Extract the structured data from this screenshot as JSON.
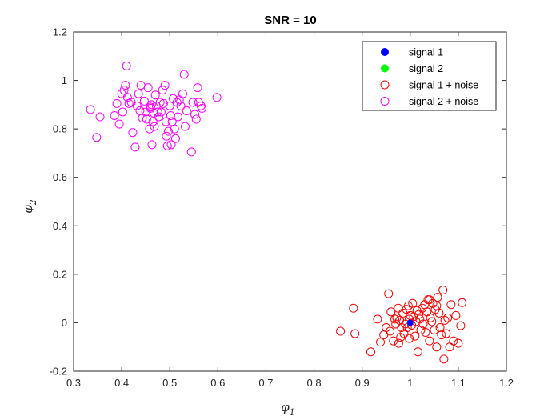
{
  "chart_data": {
    "type": "scatter",
    "title": "SNR = 10",
    "xlabel": {
      "base": "φ",
      "sub": "1"
    },
    "ylabel": {
      "base": "φ",
      "sub": "2"
    },
    "xlim": [
      0.3,
      1.2
    ],
    "ylim": [
      -0.2,
      1.2
    ],
    "xticks": [
      "0.3",
      "0.4",
      "0.5",
      "0.6",
      "0.7",
      "0.8",
      "0.9",
      "1",
      "1.1",
      "1.2"
    ],
    "yticks": [
      "-0.2",
      "0",
      "0.2",
      "0.4",
      "0.6",
      "0.8",
      "1",
      "1.2"
    ],
    "grid": false,
    "legend_position": "top-right",
    "series": [
      {
        "name": "signal 1",
        "marker": "filled-circle",
        "color": "#0000ff",
        "points": [
          [
            1.0,
            0.0
          ]
        ]
      },
      {
        "name": "signal 2",
        "marker": "filled-circle",
        "color": "#00ff00",
        "points": []
      },
      {
        "name": "signal 1 + noise",
        "marker": "open-circle",
        "color": "#ff0000",
        "points": [
          [
            0.855,
            -0.035
          ],
          [
            0.882,
            0.06
          ],
          [
            0.885,
            -0.045
          ],
          [
            0.918,
            -0.12
          ],
          [
            0.932,
            0.015
          ],
          [
            0.938,
            -0.08
          ],
          [
            0.945,
            -0.05
          ],
          [
            0.95,
            -0.02
          ],
          [
            0.955,
            0.12
          ],
          [
            0.958,
            -0.035
          ],
          [
            0.96,
            0.045
          ],
          [
            0.965,
            -0.075
          ],
          [
            0.968,
            0.015
          ],
          [
            0.97,
            -0.005
          ],
          [
            0.972,
            0.02
          ],
          [
            0.975,
            0.06
          ],
          [
            0.976,
            -0.085
          ],
          [
            0.978,
            0.01
          ],
          [
            0.98,
            -0.06
          ],
          [
            0.982,
            -0.02
          ],
          [
            0.985,
            0.04
          ],
          [
            0.987,
            -0.045
          ],
          [
            0.99,
            -0.005
          ],
          [
            0.992,
            0.055
          ],
          [
            0.994,
            -0.02
          ],
          [
            0.996,
            0.07
          ],
          [
            0.998,
            -0.065
          ],
          [
            1.0,
            0.03
          ],
          [
            1.003,
            -0.01
          ],
          [
            1.005,
            0.08
          ],
          [
            1.007,
            0.025
          ],
          [
            1.01,
            -0.055
          ],
          [
            1.012,
            0.005
          ],
          [
            1.014,
            0.05
          ],
          [
            1.016,
            -0.12
          ],
          [
            1.018,
            0.035
          ],
          [
            1.02,
            0.015
          ],
          [
            1.022,
            -0.03
          ],
          [
            1.025,
            0.06
          ],
          [
            1.027,
            -0.005
          ],
          [
            1.03,
            0.075
          ],
          [
            1.032,
            -0.04
          ],
          [
            1.035,
            0.045
          ],
          [
            1.037,
            0.095
          ],
          [
            1.04,
            -0.075
          ],
          [
            1.042,
            0.02
          ],
          [
            1.045,
            0.005
          ],
          [
            1.047,
            0.08
          ],
          [
            1.05,
            -0.03
          ],
          [
            1.052,
            0.055
          ],
          [
            1.055,
            -0.1
          ],
          [
            1.057,
            0.105
          ],
          [
            1.06,
            0.04
          ],
          [
            1.062,
            -0.02
          ],
          [
            1.065,
            -0.05
          ],
          [
            1.068,
            0.135
          ],
          [
            1.07,
            -0.15
          ],
          [
            1.072,
            0.01
          ],
          [
            1.075,
            -0.045
          ],
          [
            1.078,
            0.02
          ],
          [
            1.082,
            -0.1
          ],
          [
            1.085,
            0.075
          ],
          [
            1.09,
            -0.075
          ],
          [
            1.095,
            0.03
          ],
          [
            1.1,
            -0.085
          ],
          [
            1.105,
            -0.012
          ],
          [
            1.108,
            0.083
          ],
          [
            1.04,
            0.095
          ],
          [
            1.055,
            0.07
          ],
          [
            0.998,
            0.015
          ]
        ]
      },
      {
        "name": "signal 2 + noise",
        "marker": "open-circle",
        "color": "#ff00ff",
        "points": [
          [
            0.335,
            0.88
          ],
          [
            0.348,
            0.765
          ],
          [
            0.355,
            0.85
          ],
          [
            0.385,
            0.855
          ],
          [
            0.39,
            0.905
          ],
          [
            0.395,
            0.82
          ],
          [
            0.4,
            0.945
          ],
          [
            0.402,
            0.87
          ],
          [
            0.405,
            0.96
          ],
          [
            0.408,
            0.98
          ],
          [
            0.41,
            1.06
          ],
          [
            0.412,
            0.93
          ],
          [
            0.415,
            0.905
          ],
          [
            0.42,
            0.91
          ],
          [
            0.423,
            0.785
          ],
          [
            0.428,
            0.725
          ],
          [
            0.432,
            0.895
          ],
          [
            0.435,
            0.945
          ],
          [
            0.438,
            0.875
          ],
          [
            0.44,
            0.98
          ],
          [
            0.443,
            0.845
          ],
          [
            0.447,
            0.915
          ],
          [
            0.45,
            0.87
          ],
          [
            0.452,
            0.84
          ],
          [
            0.455,
            0.97
          ],
          [
            0.458,
            0.8
          ],
          [
            0.46,
            0.885
          ],
          [
            0.462,
            0.9
          ],
          [
            0.463,
            0.735
          ],
          [
            0.465,
            0.83
          ],
          [
            0.467,
            0.865
          ],
          [
            0.468,
            0.81
          ],
          [
            0.47,
            0.94
          ],
          [
            0.472,
            0.895
          ],
          [
            0.475,
            0.87
          ],
          [
            0.477,
            0.85
          ],
          [
            0.48,
            0.91
          ],
          [
            0.482,
            0.87
          ],
          [
            0.485,
            0.96
          ],
          [
            0.487,
            0.905
          ],
          [
            0.49,
            0.98
          ],
          [
            0.492,
            0.83
          ],
          [
            0.493,
            0.77
          ],
          [
            0.495,
            0.73
          ],
          [
            0.497,
            0.79
          ],
          [
            0.5,
            0.895
          ],
          [
            0.502,
            0.855
          ],
          [
            0.503,
            0.735
          ],
          [
            0.505,
            0.83
          ],
          [
            0.507,
            0.925
          ],
          [
            0.51,
            0.8
          ],
          [
            0.512,
            0.76
          ],
          [
            0.515,
            0.91
          ],
          [
            0.517,
            0.85
          ],
          [
            0.52,
            0.92
          ],
          [
            0.523,
            0.895
          ],
          [
            0.527,
            0.945
          ],
          [
            0.53,
            1.025
          ],
          [
            0.532,
            0.81
          ],
          [
            0.535,
            0.875
          ],
          [
            0.545,
            0.705
          ],
          [
            0.548,
            0.91
          ],
          [
            0.552,
            0.86
          ],
          [
            0.555,
            0.84
          ],
          [
            0.558,
            0.97
          ],
          [
            0.56,
            0.91
          ],
          [
            0.565,
            0.895
          ],
          [
            0.567,
            0.885
          ],
          [
            0.598,
            0.93
          ],
          [
            0.46,
            0.89
          ]
        ]
      }
    ]
  }
}
